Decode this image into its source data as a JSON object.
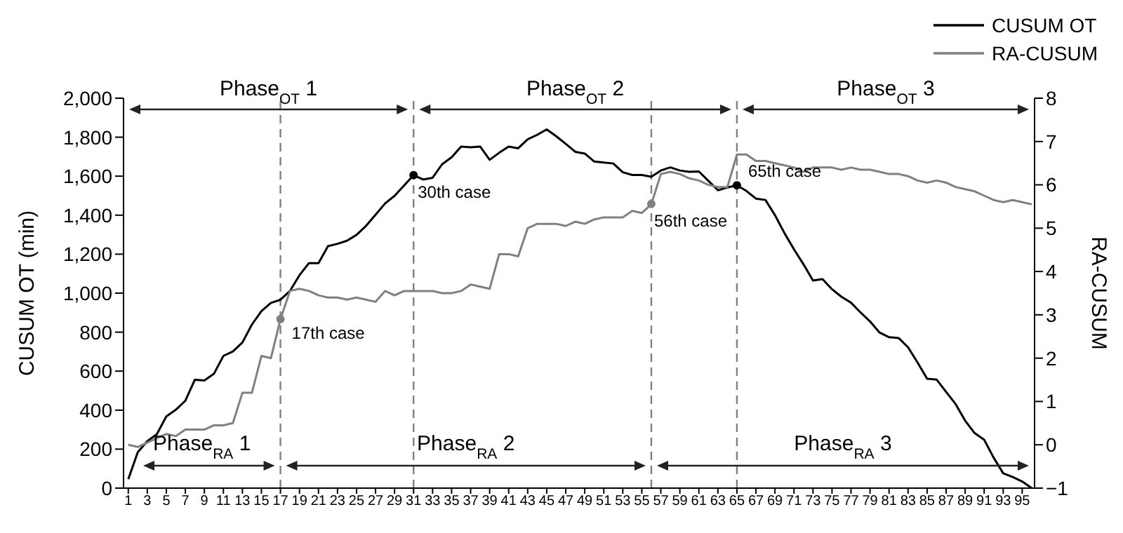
{
  "chart_data": {
    "type": "line",
    "x": [
      1,
      2,
      3,
      4,
      5,
      6,
      7,
      8,
      9,
      10,
      11,
      12,
      13,
      14,
      15,
      16,
      17,
      18,
      19,
      20,
      21,
      22,
      23,
      24,
      25,
      26,
      27,
      28,
      29,
      30,
      31,
      32,
      33,
      34,
      35,
      36,
      37,
      38,
      39,
      40,
      41,
      42,
      43,
      44,
      45,
      46,
      47,
      48,
      49,
      50,
      51,
      52,
      53,
      54,
      55,
      56,
      57,
      58,
      59,
      60,
      61,
      62,
      63,
      64,
      65,
      66,
      67,
      68,
      69,
      70,
      71,
      72,
      73,
      74,
      75,
      76,
      77,
      78,
      79,
      80,
      81,
      82,
      83,
      84,
      85,
      86,
      87,
      88,
      89,
      90,
      91,
      92,
      93,
      94,
      95,
      96
    ],
    "series": [
      {
        "name": "CUSUM OT",
        "color": "#000000",
        "values": [
          46,
          184,
          241,
          276,
          368,
          402,
          448,
          556,
          552,
          586,
          678,
          701,
          747,
          839,
          908,
          950,
          966,
          1011,
          1092,
          1154,
          1154,
          1241,
          1253,
          1269,
          1299,
          1345,
          1402,
          1460,
          1499,
          1552,
          1605,
          1583,
          1592,
          1661,
          1697,
          1752,
          1748,
          1752,
          1684,
          1720,
          1752,
          1743,
          1789,
          1812,
          1840,
          1805,
          1766,
          1725,
          1716,
          1675,
          1670,
          1665,
          1620,
          1606,
          1606,
          1597,
          1629,
          1645,
          1629,
          1622,
          1624,
          1576,
          1528,
          1542,
          1553,
          1524,
          1485,
          1478,
          1400,
          1308,
          1225,
          1148,
          1065,
          1072,
          1020,
          981,
          951,
          901,
          855,
          798,
          774,
          770,
          722,
          644,
          561,
          557,
          493,
          431,
          346,
          282,
          248,
          156,
          76,
          57,
          34,
          0
        ]
      },
      {
        "name": "RA-CUSUM",
        "color": "#808080",
        "axis": "y2",
        "values": [
          0,
          -0.05,
          0.05,
          0.15,
          0.25,
          0.2,
          0.35,
          0.35,
          0.35,
          0.45,
          0.45,
          0.5,
          1.2,
          1.2,
          2.05,
          2.0,
          2.9,
          3.55,
          3.6,
          3.55,
          3.45,
          3.4,
          3.4,
          3.35,
          3.4,
          3.35,
          3.3,
          3.55,
          3.45,
          3.55,
          3.55,
          3.55,
          3.55,
          3.5,
          3.5,
          3.55,
          3.7,
          3.65,
          3.6,
          4.4,
          4.4,
          4.35,
          5.0,
          5.1,
          5.1,
          5.1,
          5.05,
          5.15,
          5.1,
          5.2,
          5.25,
          5.25,
          5.25,
          5.4,
          5.35,
          5.55,
          6.25,
          6.3,
          6.25,
          6.15,
          6.1,
          6.0,
          5.95,
          5.95,
          6.7,
          6.7,
          6.55,
          6.55,
          6.5,
          6.45,
          6.4,
          6.3,
          6.4,
          6.4,
          6.4,
          6.35,
          6.4,
          6.35,
          6.35,
          6.3,
          6.25,
          6.25,
          6.2,
          6.1,
          6.05,
          6.1,
          6.05,
          5.95,
          5.9,
          5.85,
          5.75,
          5.65,
          5.6,
          5.65,
          5.6,
          5.55
        ]
      }
    ],
    "xlim": [
      0.5,
      96.3
    ],
    "xticks": [
      1,
      3,
      5,
      7,
      9,
      11,
      13,
      15,
      17,
      19,
      21,
      23,
      25,
      27,
      29,
      31,
      33,
      35,
      37,
      39,
      41,
      43,
      45,
      47,
      49,
      51,
      53,
      55,
      57,
      59,
      61,
      63,
      65,
      67,
      69,
      71,
      73,
      75,
      77,
      79,
      81,
      83,
      85,
      87,
      89,
      91,
      93,
      95
    ],
    "ylim": [
      0,
      2000
    ],
    "yticks": [
      0,
      200,
      400,
      600,
      800,
      {
        "value": 1000,
        "label": "1,000"
      },
      {
        "value": 1200,
        "label": "1,200"
      },
      {
        "value": 1400,
        "label": "1,400"
      },
      {
        "value": 1600,
        "label": "1,600"
      },
      {
        "value": 1800,
        "label": "1,800"
      },
      {
        "value": 2000,
        "label": "2,000"
      }
    ],
    "y2lim": [
      -1,
      8
    ],
    "y2ticks": [
      -1,
      0,
      1,
      2,
      3,
      4,
      5,
      6,
      7,
      8
    ],
    "ylabel": "CUSUM OT (min)",
    "y2label": "RA-CUSUM",
    "ref_lines": [
      {
        "axis": "x",
        "value": 17,
        "color": "#808080",
        "line_style": "dashed"
      },
      {
        "axis": "x",
        "value": 31,
        "color": "#808080",
        "line_style": "dashed"
      },
      {
        "axis": "x",
        "value": 56,
        "color": "#808080",
        "line_style": "dashed"
      },
      {
        "axis": "x",
        "value": 65,
        "color": "#808080",
        "line_style": "dashed"
      }
    ],
    "annotations": [
      "Phase$_{OT}$ 1",
      "Phase$_{OT}$ 2",
      "Phase$_{OT}$ 3",
      "Phase$_{RA}$ 1",
      "Phase$_{RA}$ 2",
      "Phase$_{RA}$ 3",
      {
        "text": "17th case",
        "x": 17,
        "y": 867
      },
      {
        "text": "30th case",
        "x": 31,
        "y": 1605
      },
      {
        "text": "56th case",
        "x": 56,
        "y": 1458
      },
      {
        "text": "65th case",
        "x": 65,
        "y": 1553
      }
    ],
    "legend": "top right",
    "grid": false,
    "marker": "none",
    "line_style": "solid"
  }
}
